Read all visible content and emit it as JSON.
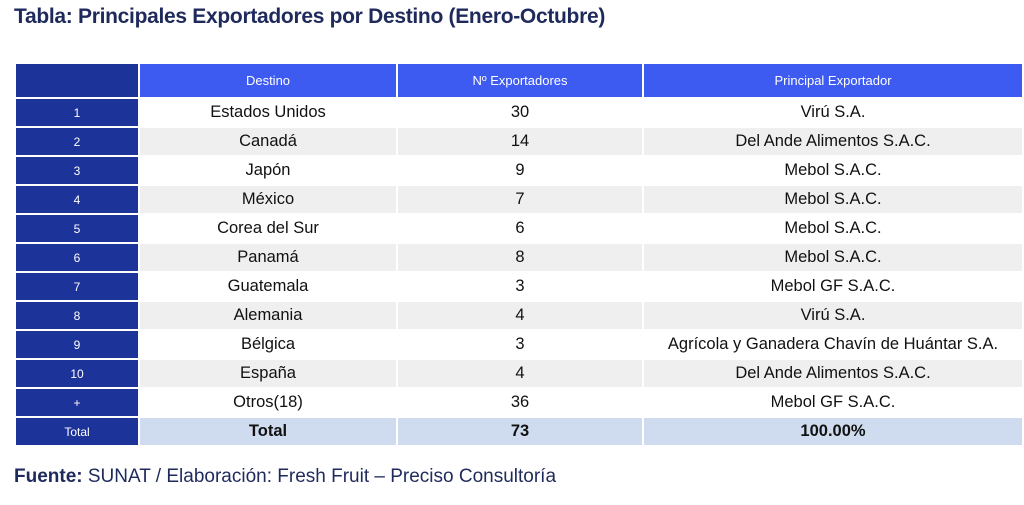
{
  "title": "Tabla:  Principales Exportadores por Destino (Enero-Octubre)",
  "table": {
    "headers": [
      "",
      "Destino",
      "Nº Exportadores",
      "Principal Exportador"
    ],
    "rows": [
      {
        "idx": "1",
        "destino": "Estados Unidos",
        "num": "30",
        "exportador": "Virú S.A."
      },
      {
        "idx": "2",
        "destino": "Canadá",
        "num": "14",
        "exportador": "Del Ande Alimentos S.A.C."
      },
      {
        "idx": "3",
        "destino": "Japón",
        "num": "9",
        "exportador": "Mebol S.A.C."
      },
      {
        "idx": "4",
        "destino": "México",
        "num": "7",
        "exportador": "Mebol S.A.C."
      },
      {
        "idx": "5",
        "destino": "Corea del Sur",
        "num": "6",
        "exportador": "Mebol S.A.C."
      },
      {
        "idx": "6",
        "destino": "Panamá",
        "num": "8",
        "exportador": "Mebol S.A.C."
      },
      {
        "idx": "7",
        "destino": "Guatemala",
        "num": "3",
        "exportador": "Mebol GF S.A.C."
      },
      {
        "idx": "8",
        "destino": "Alemania",
        "num": "4",
        "exportador": "Virú S.A."
      },
      {
        "idx": "9",
        "destino": "Bélgica",
        "num": "3",
        "exportador": "Agrícola y Ganadera Chavín de Huántar S.A."
      },
      {
        "idx": "10",
        "destino": "España",
        "num": "4",
        "exportador": "Del Ande Alimentos S.A.C."
      },
      {
        "idx": "+",
        "destino": "Otros(18)",
        "num": "36",
        "exportador": "Mebol GF S.A.C."
      }
    ],
    "total": {
      "idx": "Total",
      "destino": "Total",
      "num": "73",
      "exportador": "100.00%"
    }
  },
  "source": {
    "label": "Fuente:",
    "text": " SUNAT / Elaboración: Fresh Fruit – Preciso Consultoría"
  },
  "colors": {
    "header_blue": "#3d5af1",
    "index_navy": "#1c3399",
    "row_shade": "#efefef",
    "total_row": "#cfdcef",
    "title_text": "#1f2a5c"
  }
}
